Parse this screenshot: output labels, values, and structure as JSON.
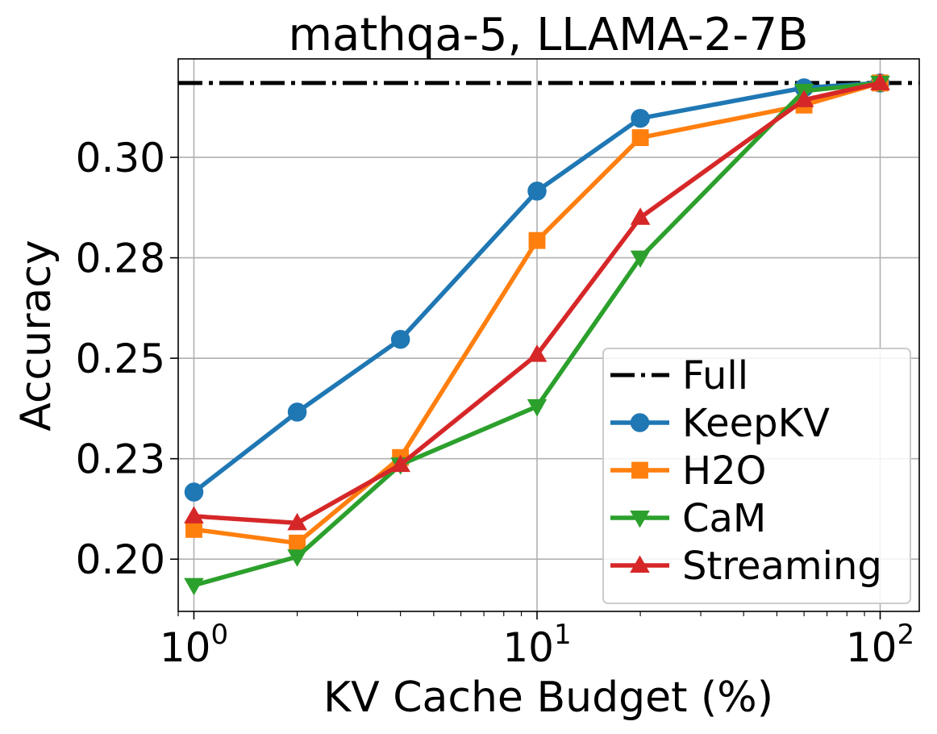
{
  "chart_data": {
    "type": "line",
    "title": "mathqa-5, LLAMA-2-7B",
    "xlabel": "KV Cache Budget (%)",
    "ylabel": "Accuracy",
    "xscale": "log",
    "xlim": [
      0.9,
      130
    ],
    "ylim": [
      0.187,
      0.3245
    ],
    "x": [
      1,
      2,
      4,
      10,
      20,
      60,
      100
    ],
    "x_ticks": [
      1,
      10,
      100
    ],
    "x_tick_labels": [
      {
        "base": "10",
        "exp": "0"
      },
      {
        "base": "10",
        "exp": "1"
      },
      {
        "base": "10",
        "exp": "2"
      }
    ],
    "y_ticks": [
      0.2,
      0.225,
      0.25,
      0.275,
      0.3
    ],
    "y_tick_labels": [
      "0.20",
      "0.23",
      "0.25",
      "0.28",
      "0.30"
    ],
    "grid": true,
    "legend_position": "lower-right",
    "reference_line": {
      "name": "Full",
      "value": 0.3185,
      "color": "#000000",
      "style": "dash-dot"
    },
    "series": [
      {
        "name": "KeepKV",
        "color": "#1f77b4",
        "marker": "circle",
        "values": [
          0.2167,
          0.2366,
          0.2547,
          0.2916,
          0.3097,
          0.3173,
          0.3185
        ]
      },
      {
        "name": "H2O",
        "color": "#ff7f0e",
        "marker": "square",
        "values": [
          0.2074,
          0.204,
          0.2253,
          0.2793,
          0.3049,
          0.313,
          0.3185
        ]
      },
      {
        "name": "CaM",
        "color": "#2ca02c",
        "marker": "triangle-down",
        "values": [
          0.1935,
          0.2006,
          0.2235,
          0.238,
          0.275,
          0.3165,
          0.3185
        ]
      },
      {
        "name": "Streaming",
        "color": "#d62728",
        "marker": "triangle-up",
        "values": [
          0.2107,
          0.209,
          0.2235,
          0.2509,
          0.285,
          0.3143,
          0.3185
        ]
      }
    ]
  }
}
